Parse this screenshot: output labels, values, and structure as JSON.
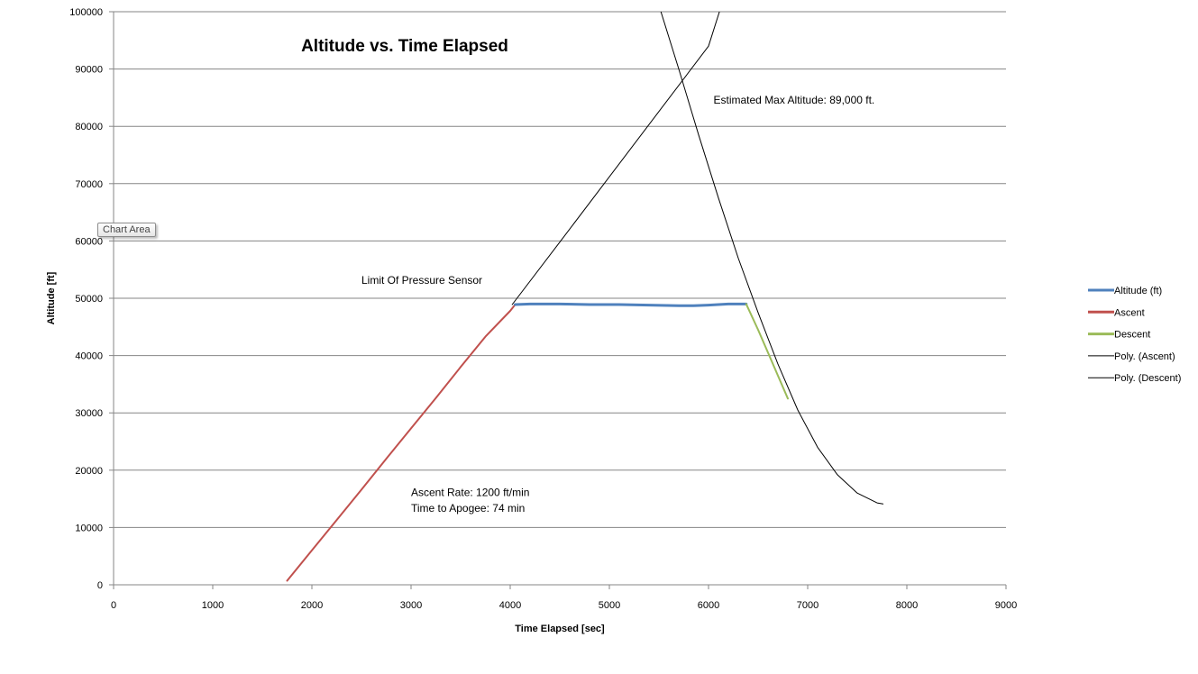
{
  "chart_data": {
    "type": "line",
    "title": "Altitude vs. Time Elapsed",
    "xlabel": "Time Elapsed  [sec]",
    "ylabel": "Altitude [ft]",
    "xlim": [
      0,
      9000
    ],
    "ylim": [
      0,
      100000
    ],
    "x_ticks": [
      0,
      1000,
      2000,
      3000,
      4000,
      5000,
      6000,
      7000,
      8000,
      9000
    ],
    "y_ticks": [
      0,
      10000,
      20000,
      30000,
      40000,
      50000,
      60000,
      70000,
      80000,
      90000,
      100000
    ],
    "grid": "horizontal",
    "legend_position": "right",
    "series": [
      {
        "name": "Altitude (ft)",
        "color": "#4f81bd",
        "width": 3,
        "x": [
          4050,
          4200,
          4500,
          4800,
          5100,
          5400,
          5700,
          5850,
          6000,
          6200,
          6380
        ],
        "y": [
          48900,
          49000,
          49000,
          48900,
          48900,
          48800,
          48700,
          48700,
          48800,
          49000,
          49000
        ]
      },
      {
        "name": "Ascent",
        "color": "#c0504d",
        "width": 2,
        "x": [
          1750,
          2000,
          2250,
          2500,
          2750,
          3000,
          3250,
          3500,
          3750,
          4000,
          4050
        ],
        "y": [
          700,
          6000,
          11300,
          16600,
          22000,
          27300,
          32600,
          38000,
          43300,
          47800,
          48900
        ]
      },
      {
        "name": "Descent",
        "color": "#9bbb59",
        "width": 2,
        "x": [
          6380,
          6500,
          6600,
          6700,
          6800
        ],
        "y": [
          49000,
          44500,
          40500,
          36500,
          32500
        ]
      },
      {
        "name": "Poly. (Ascent)",
        "color": "#000000",
        "width": 1,
        "x": [
          4020,
          4500,
          5000,
          5500,
          6000,
          6110
        ],
        "y": [
          48900,
          59800,
          71200,
          82600,
          94000,
          100000
        ]
      },
      {
        "name": "Poly. (Descent)",
        "color": "#000000",
        "width": 1,
        "x": [
          5520,
          5700,
          5900,
          6100,
          6300,
          6500,
          6700,
          6900,
          7100,
          7300,
          7500,
          7700,
          7760
        ],
        "y": [
          100000,
          90000,
          78500,
          67500,
          57000,
          47500,
          38500,
          30500,
          24000,
          19200,
          16000,
          14300,
          14100
        ]
      }
    ],
    "annotations": [
      {
        "id": "max",
        "text": "Estimated Max Altitude: 89,000  ft.",
        "x": 6050,
        "y": 84000
      },
      {
        "id": "limit",
        "text": "Limit Of Pressure Sensor",
        "x": 2500,
        "y": 52500
      },
      {
        "id": "rate",
        "text": "Ascent Rate: 1200 ft/min",
        "x": 3000,
        "y": 15500
      },
      {
        "id": "apogee",
        "text": "Time to Apogee: 74 min",
        "x": 3000,
        "y": 12700
      }
    ]
  },
  "tooltip": {
    "text": "Chart Area"
  }
}
